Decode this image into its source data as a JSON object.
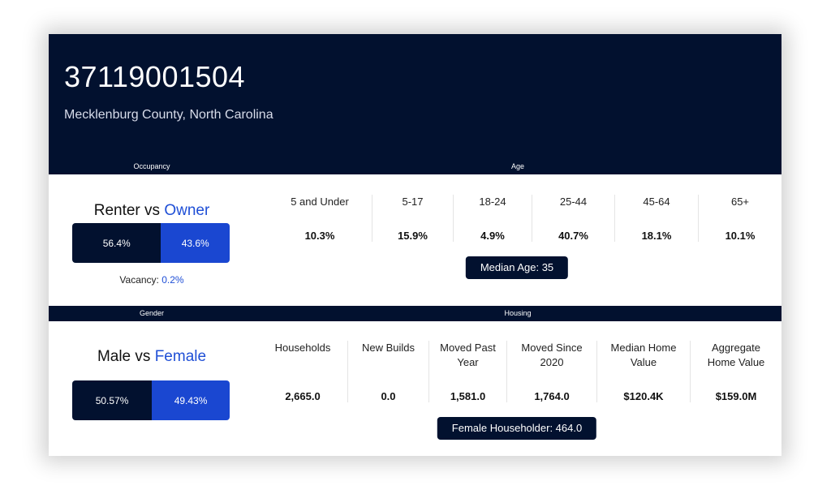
{
  "header": {
    "title": "37119001504",
    "subtitle": "Mecklenburg County, North Carolina"
  },
  "occupancy": {
    "label": "Occupancy",
    "heading_left": "Renter vs ",
    "heading_right": "Owner",
    "renter": "56.4%",
    "owner": "43.6%",
    "vacancy_label": "Vacancy: ",
    "vacancy_value": "0.2%"
  },
  "age": {
    "label": "Age",
    "groups": [
      {
        "name": "5 and Under",
        "value": "10.3%"
      },
      {
        "name": "5-17",
        "value": "15.9%"
      },
      {
        "name": "18-24",
        "value": "4.9%"
      },
      {
        "name": "25-44",
        "value": "40.7%"
      },
      {
        "name": "45-64",
        "value": "18.1%"
      },
      {
        "name": "65+",
        "value": "10.1%"
      }
    ],
    "median": "Median Age: 35"
  },
  "gender": {
    "label": "Gender",
    "heading_left": "Male vs ",
    "heading_right": "Female",
    "male": "50.57%",
    "female": "49.43%"
  },
  "housing": {
    "label": "Housing",
    "items": [
      {
        "name": "Households",
        "value": "2,665.0"
      },
      {
        "name": "New Builds",
        "value": "0.0"
      },
      {
        "name": "Moved Past Year",
        "value": "1,581.0"
      },
      {
        "name": "Moved Since 2020",
        "value": "1,764.0"
      },
      {
        "name": "Median Home Value",
        "value": "$120.4K"
      },
      {
        "name": "Aggregate Home Value",
        "value": "$159.0M"
      }
    ],
    "female_householder": "Female Householder: 464.0"
  }
}
